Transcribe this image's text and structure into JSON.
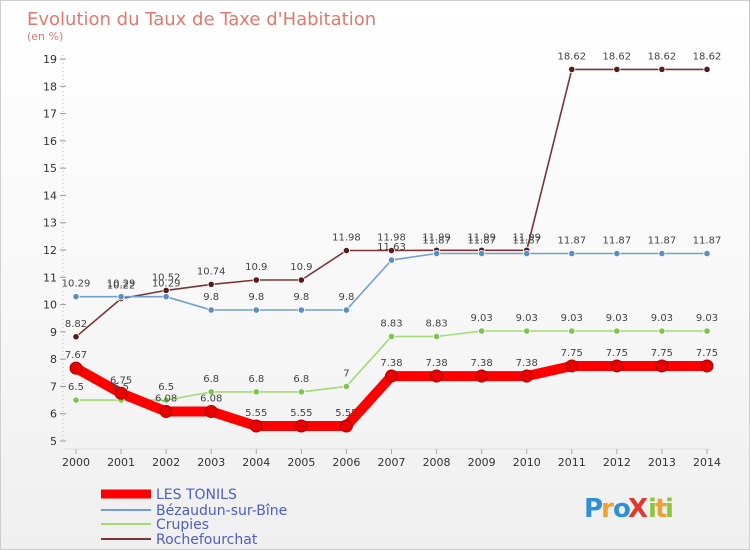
{
  "chart_data": {
    "type": "line",
    "title": "Evolution du Taux de Taxe d'Habitation",
    "subtitle": "(en %)",
    "x": [
      "2000",
      "2001",
      "2002",
      "2003",
      "2004",
      "2005",
      "2006",
      "2007",
      "2008",
      "2009",
      "2010",
      "2011",
      "2012",
      "2013",
      "2014"
    ],
    "ylim": [
      5,
      19
    ],
    "yticks": [
      5,
      6,
      7,
      8,
      9,
      10,
      11,
      12,
      13,
      14,
      15,
      16,
      17,
      18,
      19
    ],
    "grid": false,
    "legend_position": "bottom-left",
    "series": [
      {
        "name": "LES TONILS",
        "color": "#ff0000",
        "marker": "#cc0000",
        "values": [
          7.67,
          6.75,
          6.08,
          6.08,
          5.55,
          5.55,
          5.55,
          7.38,
          7.38,
          7.38,
          7.38,
          7.75,
          7.75,
          7.75,
          7.75
        ],
        "labels": [
          "7.67",
          "6.75",
          "6.08",
          "6.08",
          "5.55",
          "5.55",
          "5.55",
          "7.38",
          "7.38",
          "7.38",
          "7.38",
          "7.75",
          "7.75",
          "7.75",
          "7.75"
        ]
      },
      {
        "name": "Bézaudun-sur-Bîne",
        "color": "#6fa0cf",
        "marker": "#5b8ec0",
        "values": [
          10.29,
          10.29,
          10.29,
          9.8,
          9.8,
          9.8,
          9.8,
          11.63,
          11.87,
          11.87,
          11.87,
          11.87,
          11.87,
          11.87,
          11.87
        ],
        "labels": [
          "10.29",
          "10.29",
          "10.29",
          "9.8",
          "9.8",
          "9.8",
          "9.8",
          "11.63",
          "11.87",
          "11.87",
          "11.87",
          "11.87",
          "11.87",
          "11.87",
          "11.87"
        ]
      },
      {
        "name": "Crupies",
        "color": "#9fdc72",
        "marker": "#7cc64c",
        "values": [
          6.5,
          6.5,
          6.5,
          6.8,
          6.8,
          6.8,
          7,
          8.83,
          8.83,
          9.03,
          9.03,
          9.03,
          9.03,
          9.03,
          9.03
        ],
        "labels": [
          "6.5",
          "6.5",
          "6.5",
          "6.8",
          "6.8",
          "6.8",
          "7",
          "8.83",
          "8.83",
          "9.03",
          "9.03",
          "9.03",
          "9.03",
          "9.03",
          "9.03"
        ]
      },
      {
        "name": "Rochefourchat",
        "color": "#7a3535",
        "marker": "#5a1a1a",
        "values": [
          8.82,
          10.22,
          10.52,
          10.74,
          10.9,
          10.9,
          11.98,
          11.98,
          11.99,
          11.99,
          11.99,
          18.62,
          18.62,
          18.62,
          18.62
        ],
        "labels": [
          "8.82",
          "10.22",
          "10.52",
          "10.74",
          "10.9",
          "10.9",
          "11.98",
          "11.98",
          "11.99",
          "11.99",
          "11.99",
          "18.62",
          "18.62",
          "18.62",
          "18.62"
        ]
      }
    ]
  },
  "logo": {
    "text": "ProXiti",
    "letters": [
      "P",
      "r",
      "o",
      "X",
      "i",
      "t",
      "i"
    ],
    "colors": [
      "#2f8fd6",
      "#f0a030",
      "#2f8fd6",
      "#e0382e",
      "#8cc63f",
      "#f0a030",
      "#8cc63f"
    ]
  }
}
